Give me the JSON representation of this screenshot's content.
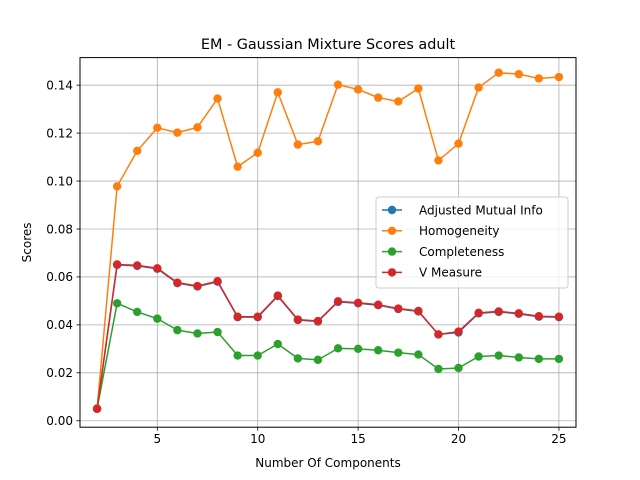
{
  "chart_data": {
    "type": "line",
    "title": "EM - Gaussian Mixture Scores adult",
    "xlabel": "Number Of Components",
    "ylabel": "Scores",
    "xlim": [
      1.15,
      25.85
    ],
    "ylim": [
      -0.0027,
      0.1515
    ],
    "xticks": [
      5,
      10,
      15,
      20,
      25
    ],
    "yticks": [
      0.0,
      0.02,
      0.04,
      0.06,
      0.08,
      0.1,
      0.12,
      0.14
    ],
    "ytick_labels": [
      "0.00",
      "0.02",
      "0.04",
      "0.06",
      "0.08",
      "0.10",
      "0.12",
      "0.14"
    ],
    "grid": true,
    "legend_position": "center-right",
    "x": [
      2,
      3,
      4,
      5,
      6,
      7,
      8,
      9,
      10,
      11,
      12,
      13,
      14,
      15,
      16,
      17,
      18,
      19,
      20,
      21,
      22,
      23,
      24,
      25
    ],
    "series": [
      {
        "name": "Adjusted Mutual Info",
        "color": "#1f77b4",
        "values": [
          0.005,
          0.065,
          0.0646,
          0.0634,
          0.0574,
          0.056,
          0.058,
          0.0432,
          0.0432,
          0.052,
          0.042,
          0.0414,
          0.0496,
          0.049,
          0.0482,
          0.0466,
          0.0456,
          0.036,
          0.0368,
          0.0448,
          0.0454,
          0.0446,
          0.0434,
          0.0432
        ]
      },
      {
        "name": "Homogeneity",
        "color": "#ff7f0e",
        "values": [
          0.005,
          0.0978,
          0.1126,
          0.1222,
          0.1202,
          0.1224,
          0.1344,
          0.106,
          0.1118,
          0.137,
          0.1152,
          0.1166,
          0.1402,
          0.1382,
          0.1348,
          0.1332,
          0.1386,
          0.1086,
          0.1156,
          0.139,
          0.1452,
          0.1446,
          0.1428,
          0.1434
        ]
      },
      {
        "name": "Completeness",
        "color": "#2ca02c",
        "values": [
          0.005,
          0.049,
          0.0454,
          0.0426,
          0.0378,
          0.0364,
          0.037,
          0.0272,
          0.0272,
          0.032,
          0.026,
          0.0254,
          0.0302,
          0.03,
          0.0294,
          0.0284,
          0.0276,
          0.0216,
          0.022,
          0.0268,
          0.0272,
          0.0264,
          0.0258,
          0.0258
        ]
      },
      {
        "name": "V Measure",
        "color": "#d62728",
        "values": [
          0.005,
          0.0652,
          0.0648,
          0.0636,
          0.0576,
          0.0562,
          0.0582,
          0.0434,
          0.0434,
          0.0522,
          0.0422,
          0.0416,
          0.0498,
          0.0492,
          0.0484,
          0.0468,
          0.0458,
          0.036,
          0.0372,
          0.045,
          0.0456,
          0.0448,
          0.0436,
          0.0434
        ]
      }
    ]
  }
}
